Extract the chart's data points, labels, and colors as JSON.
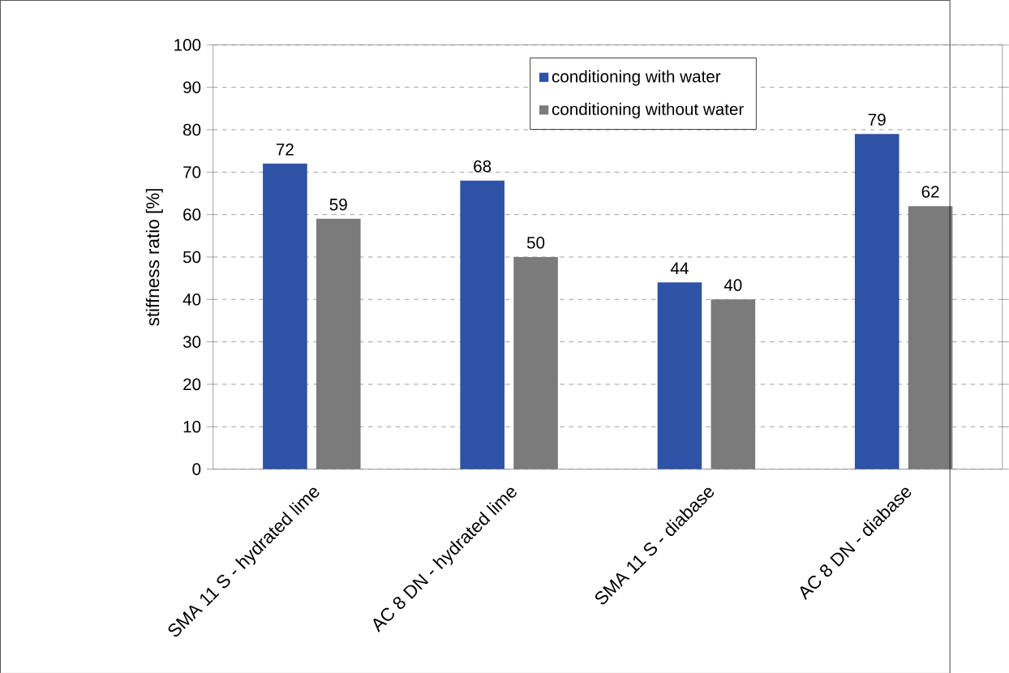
{
  "chart_data": {
    "type": "bar",
    "ylabel": "stiffness ratio [%]",
    "categories": [
      "SMA 11 S - hydrated lime",
      "AC 8 DN - hydrated lime",
      "SMA 11 S - diabase",
      "AC 8 DN - diabase"
    ],
    "series": [
      {
        "name": "conditioning with water",
        "color": "#2e52a6",
        "values": [
          72,
          68,
          44,
          79
        ]
      },
      {
        "name": "conditioning without water",
        "color": "#7b7b7b",
        "values": [
          59,
          50,
          40,
          62
        ]
      }
    ],
    "ylim": [
      0,
      100
    ],
    "yticks": [
      0,
      10,
      20,
      30,
      40,
      50,
      60,
      70,
      80,
      90,
      100
    ],
    "grid": "y",
    "legend": "top",
    "data_labels": true
  }
}
